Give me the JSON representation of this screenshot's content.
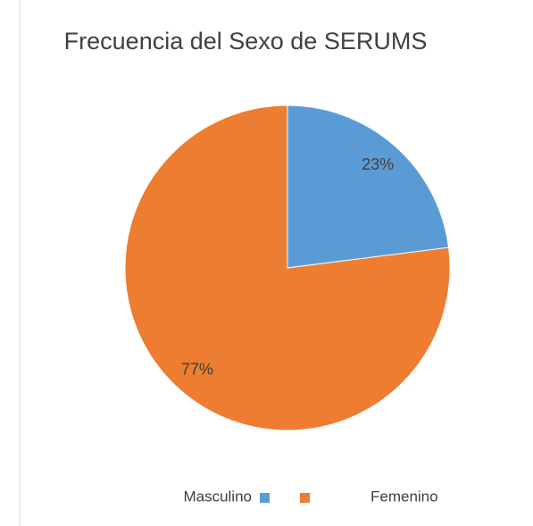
{
  "chart_data": {
    "type": "pie",
    "title": "Frecuencia del Sexo de SERUMS",
    "categories": [
      "Masculino",
      "Femenino"
    ],
    "values": [
      23,
      77
    ],
    "value_labels": [
      "23%",
      "77%"
    ],
    "colors": [
      "#5b9bd5",
      "#ed7d31"
    ],
    "legend": "bottom"
  }
}
